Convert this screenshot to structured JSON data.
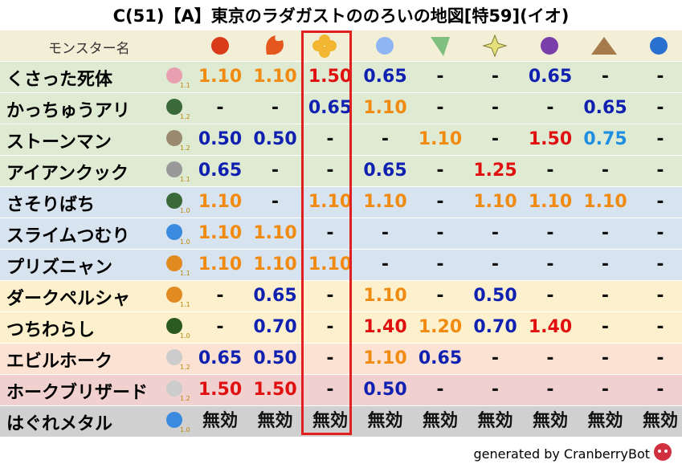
{
  "title": "C(51)【A】東京のラダガストののろいの地図[特59](イオ)",
  "table": {
    "header": "モンスター名",
    "rows": [
      {
        "name": "くさった死体",
        "level": "1.1",
        "cells": [
          "1.10",
          "1.10",
          "1.50",
          "0.65",
          "-",
          "-",
          "0.65",
          "-",
          "-"
        ]
      },
      {
        "name": "かっちゅうアリ",
        "level": "1.2",
        "cells": [
          "-",
          "-",
          "0.65",
          "1.10",
          "-",
          "-",
          "-",
          "0.65",
          "-"
        ]
      },
      {
        "name": "ストーンマン",
        "level": "1.2",
        "cells": [
          "0.50",
          "0.50",
          "-",
          "-",
          "1.10",
          "-",
          "1.50",
          "0.75",
          "-"
        ]
      },
      {
        "name": "アイアンクック",
        "level": "1.1",
        "cells": [
          "0.65",
          "-",
          "-",
          "0.65",
          "-",
          "1.25",
          "-",
          "-",
          "-"
        ]
      },
      {
        "name": "さそりばち",
        "level": "1.0",
        "cells": [
          "1.10",
          "-",
          "1.10",
          "1.10",
          "-",
          "1.10",
          "1.10",
          "1.10",
          "-"
        ]
      },
      {
        "name": "スライムつむり",
        "level": "1.0",
        "cells": [
          "1.10",
          "1.10",
          "-",
          "-",
          "-",
          "-",
          "-",
          "-",
          "-"
        ]
      },
      {
        "name": "プリズニャン",
        "level": "1.1",
        "cells": [
          "1.10",
          "1.10",
          "1.10",
          "-",
          "-",
          "-",
          "-",
          "-",
          "-"
        ]
      },
      {
        "name": "ダークペルシャ",
        "level": "1.1",
        "cells": [
          "-",
          "0.65",
          "-",
          "1.10",
          "-",
          "0.50",
          "-",
          "-",
          "-"
        ]
      },
      {
        "name": "つちわらし",
        "level": "1.0",
        "cells": [
          "-",
          "0.70",
          "-",
          "1.40",
          "1.20",
          "0.70",
          "1.40",
          "-",
          "-"
        ]
      },
      {
        "name": "エビルホーク",
        "level": "1.2",
        "cells": [
          "0.65",
          "0.50",
          "-",
          "1.10",
          "0.65",
          "-",
          "-",
          "-",
          "-"
        ]
      },
      {
        "name": "ホークブリザード",
        "level": "1.2",
        "cells": [
          "1.50",
          "1.50",
          "-",
          "0.50",
          "-",
          "-",
          "-",
          "-",
          "-"
        ]
      },
      {
        "name": "はぐれメタル",
        "level": "1.0",
        "cells": [
          "無効",
          "無効",
          "無効",
          "無効",
          "無効",
          "無効",
          "無効",
          "無効",
          "無効"
        ]
      }
    ]
  },
  "footer": "generated by CranberryBot"
}
